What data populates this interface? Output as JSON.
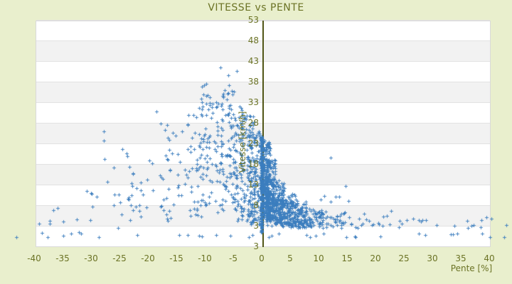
{
  "colors": {
    "background": "#e9efcd",
    "plot_background": "#ffffff",
    "band_gray": "#f2f2f2",
    "gridline": "#e2e2e2",
    "text_olive": "#6b7325",
    "axis_line": "#515617",
    "point_blue": "#3b7dbe"
  },
  "chart_data": {
    "type": "scatter",
    "title": "VITESSE vs PENTE",
    "xlabel": "Pente [%]",
    "ylabel": "Vitesse [km/h]",
    "xlim": [
      -39.75,
      40.25
    ],
    "ylim": [
      -2.2,
      53
    ],
    "x_ticks": [
      -40,
      -35,
      -30,
      -25,
      -20,
      -15,
      -10,
      -5,
      0,
      5,
      10,
      15,
      20,
      25,
      30,
      35,
      40
    ],
    "y_ticks": [
      53,
      48,
      43,
      38,
      33,
      28,
      23,
      18,
      13,
      8,
      3
    ],
    "y_axis_bottom_label": "3",
    "grid": "horizontal-bands",
    "legend": "none",
    "marker": "plus",
    "marker_color": "#3b7dbe",
    "y_axis_position": "x=0",
    "seed": 123,
    "point_clusters": [
      {
        "x": [
          -0.12,
          0.12
        ],
        "v": [
          1.5,
          25
        ],
        "n": 200
      },
      {
        "x": [
          -0.06,
          0.06
        ],
        "v": [
          2,
          22
        ],
        "n": 110
      },
      {
        "x": [
          0.15,
          1.5
        ],
        "v": [
          4,
          24
        ],
        "n": 150
      },
      {
        "x": [
          0.2,
          2.5
        ],
        "v": [
          5,
          19
        ],
        "n": 170
      },
      {
        "x": [
          0.5,
          4
        ],
        "v": [
          4,
          14
        ],
        "n": 170
      },
      {
        "x": [
          1,
          6
        ],
        "v": [
          3,
          11
        ],
        "n": 150
      },
      {
        "x": [
          3,
          8
        ],
        "v": [
          2.5,
          9
        ],
        "n": 130
      },
      {
        "x": [
          6,
          11
        ],
        "v": [
          2.5,
          7.5
        ],
        "n": 80
      },
      {
        "x": [
          9,
          15
        ],
        "v": [
          2.5,
          6.5
        ],
        "n": 40
      },
      {
        "x": [
          14,
          22
        ],
        "v": [
          2.5,
          6
        ],
        "n": 20
      },
      {
        "x": [
          21,
          30
        ],
        "v": [
          2.5,
          5.5
        ],
        "n": 9
      },
      {
        "x": [
          30,
          41
        ],
        "v": [
          2.5,
          5
        ],
        "n": 7
      },
      {
        "x": [
          10,
          17
        ],
        "v": [
          6,
          13
        ],
        "n": 8
      },
      {
        "x": [
          -2.5,
          -0.15
        ],
        "v": [
          3,
          26
        ],
        "n": 140
      },
      {
        "x": [
          -5,
          -1
        ],
        "v": [
          4,
          30
        ],
        "n": 120
      },
      {
        "x": [
          -8,
          -3
        ],
        "v": [
          6,
          36
        ],
        "n": 100
      },
      {
        "x": [
          -11,
          -5
        ],
        "v": [
          8,
          38
        ],
        "n": 75
      },
      {
        "x": [
          -13,
          -8
        ],
        "v": [
          5,
          33
        ],
        "n": 50
      },
      {
        "x": [
          -18,
          -11
        ],
        "v": [
          4,
          28
        ],
        "n": 42
      },
      {
        "x": [
          -24,
          -16
        ],
        "v": [
          3,
          20
        ],
        "n": 26
      },
      {
        "x": [
          -31,
          -22
        ],
        "v": [
          2,
          14
        ],
        "n": 15
      },
      {
        "x": [
          -40,
          -30
        ],
        "v": [
          1,
          8
        ],
        "n": 10
      },
      {
        "x": [
          -30,
          -10
        ],
        "v": [
          10,
          26
        ],
        "n": 22
      },
      {
        "x": [
          -38,
          2
        ],
        "v": [
          0.1,
          1.2
        ],
        "n": 15
      },
      {
        "x": [
          2,
          42
        ],
        "v": [
          0.1,
          1.2
        ],
        "n": 15
      }
    ],
    "outlier_points": [
      [
        -43.1,
        0.3
      ],
      [
        43.0,
        3.2
      ],
      [
        42.6,
        0.3
      ],
      [
        40.1,
        0.25
      ],
      [
        33.9,
        3.0
      ],
      [
        -18.5,
        30.8
      ],
      [
        -7.2,
        41.5
      ],
      [
        -4.4,
        40.6
      ],
      [
        -5.9,
        39.5
      ],
      [
        12.1,
        19.5
      ],
      [
        22.8,
        6.6
      ],
      [
        25.5,
        4.4
      ],
      [
        28.9,
        4.4
      ],
      [
        36.2,
        2.5
      ],
      [
        38.5,
        2.6
      ],
      [
        -39.1,
        3.5
      ]
    ]
  }
}
